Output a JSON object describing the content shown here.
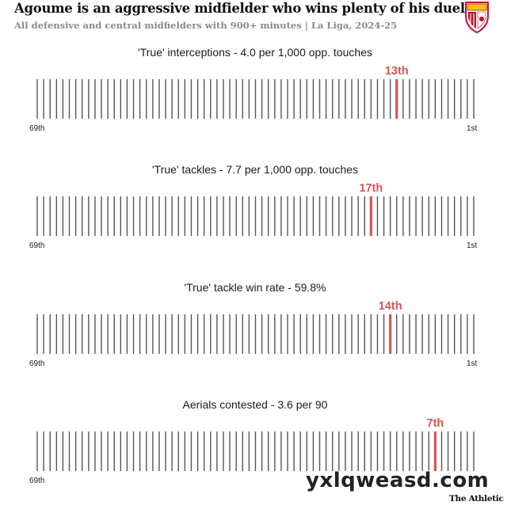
{
  "header": {
    "title": "Agoume is an aggressive midfielder who wins plenty of his duels",
    "subtitle": "All defensive and central midfielders with 900+ minutes | La Liga, 2024-25"
  },
  "colors": {
    "tick": "#555555",
    "highlight": "#d9534f",
    "crest_red": "#c8102e"
  },
  "chart_data": [
    {
      "type": "bar",
      "title": "'True' interceptions - 4.0 per 1,000 opp. touches",
      "total": 69,
      "rank": 13,
      "rank_label": "13th",
      "left_label": "69th",
      "right_label": "1st"
    },
    {
      "type": "bar",
      "title": "'True' tackles - 7.7 per 1,000 opp. touches",
      "total": 69,
      "rank": 17,
      "rank_label": "17th",
      "left_label": "69th",
      "right_label": "1st"
    },
    {
      "type": "bar",
      "title": "'True' tackle win rate - 59.8%",
      "total": 69,
      "rank": 14,
      "rank_label": "14th",
      "left_label": "69th",
      "right_label": "1st"
    },
    {
      "type": "bar",
      "title": "Aerials contested - 3.6 per 90",
      "total": 69,
      "rank": 7,
      "rank_label": "7th",
      "left_label": "69th",
      "right_label": ""
    }
  ],
  "watermark": "yxlqweasd.com",
  "brand": "The Athletic"
}
